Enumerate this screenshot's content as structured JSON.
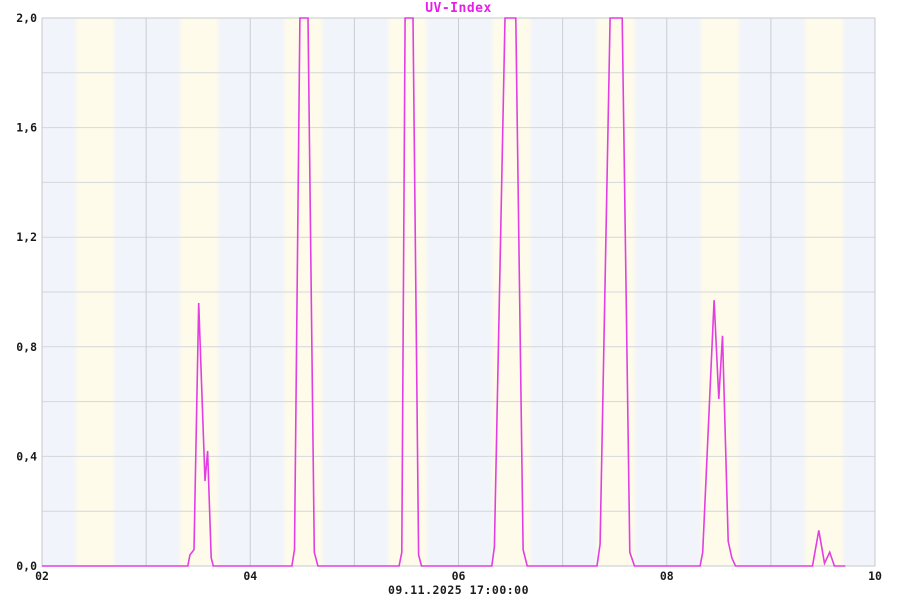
{
  "chart_data": {
    "type": "line",
    "title": "UV-Index",
    "footer": "09.11.2025 17:00:00",
    "x_axis": {
      "range": [
        2,
        10
      ],
      "tick_values": [
        2,
        4,
        6,
        8,
        10
      ],
      "tick_labels": [
        "02",
        "04",
        "06",
        "08",
        "10"
      ],
      "grid_step": 1
    },
    "y_axis": {
      "range": [
        0,
        2
      ],
      "tick_values": [
        0,
        0.4,
        0.8,
        1.2,
        1.6,
        2
      ],
      "tick_labels": [
        "0,0",
        "0,4",
        "0,8",
        "1,2",
        "1,6",
        "2,0"
      ],
      "grid_step": 0.2
    },
    "series": [
      {
        "name": "UV-Index",
        "color": "#e23ee2",
        "clipped_at": 2.0,
        "points": [
          [
            2.0,
            0
          ],
          [
            3.4,
            0
          ],
          [
            3.42,
            0.04
          ],
          [
            3.46,
            0.06
          ],
          [
            3.505,
            0.96
          ],
          [
            3.565,
            0.31
          ],
          [
            3.59,
            0.42
          ],
          [
            3.625,
            0.03
          ],
          [
            3.645,
            0
          ],
          [
            4.4,
            0
          ],
          [
            4.425,
            0.06
          ],
          [
            4.477,
            2
          ],
          [
            4.555,
            2
          ],
          [
            4.615,
            0.05
          ],
          [
            4.65,
            0
          ],
          [
            5.43,
            0
          ],
          [
            5.455,
            0.05
          ],
          [
            5.487,
            2
          ],
          [
            5.563,
            2
          ],
          [
            5.617,
            0.04
          ],
          [
            5.645,
            0
          ],
          [
            6.32,
            0
          ],
          [
            6.345,
            0.07
          ],
          [
            6.447,
            2
          ],
          [
            6.55,
            2
          ],
          [
            6.62,
            0.06
          ],
          [
            6.66,
            0
          ],
          [
            7.33,
            0
          ],
          [
            7.36,
            0.08
          ],
          [
            7.456,
            2
          ],
          [
            7.572,
            2
          ],
          [
            7.645,
            0.05
          ],
          [
            7.69,
            0
          ],
          [
            8.32,
            0
          ],
          [
            8.345,
            0.05
          ],
          [
            8.455,
            0.97
          ],
          [
            8.5,
            0.61
          ],
          [
            8.535,
            0.84
          ],
          [
            8.59,
            0.09
          ],
          [
            8.625,
            0.03
          ],
          [
            8.66,
            0
          ],
          [
            9.4,
            0
          ],
          [
            9.46,
            0.13
          ],
          [
            9.515,
            0.01
          ],
          [
            9.565,
            0.05
          ],
          [
            9.61,
            0
          ],
          [
            9.715,
            0
          ]
        ]
      }
    ],
    "daylight_bands": {
      "days": [
        2,
        3,
        4,
        5,
        6,
        7,
        8,
        9
      ],
      "start_frac": 0.3,
      "end_frac": 0.72
    },
    "colors": {
      "title": "#e81ee8",
      "line": "#e23ee2",
      "night_background": "#f1f4fa",
      "daylight_band": "#fffbea",
      "horizontal_grid": "#d4d7dc",
      "vertical_grid": "#c9cdd4",
      "border": "#c6c9cf",
      "tick_label": "#1a1a1a",
      "footer": "#1c1c1c"
    },
    "grid": true,
    "legend": false
  }
}
